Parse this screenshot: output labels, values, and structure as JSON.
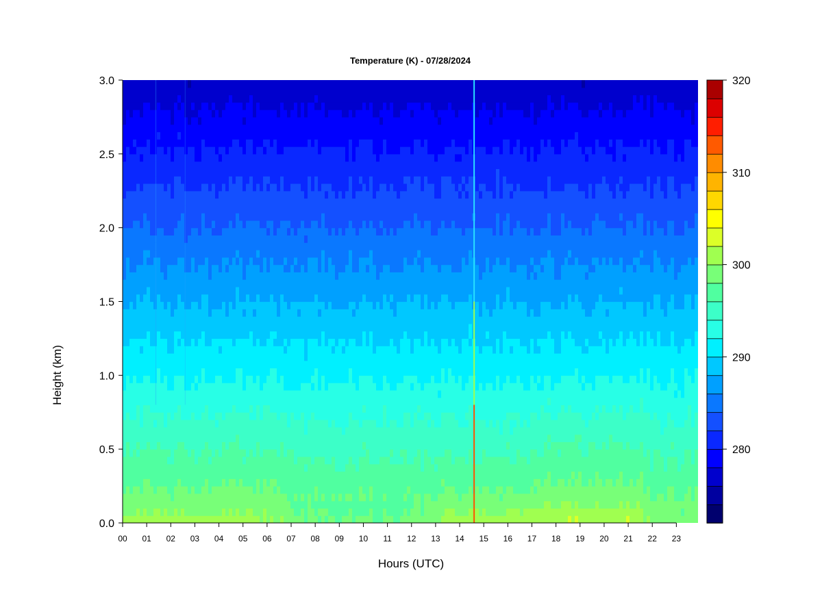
{
  "chart_data": {
    "type": "heatmap",
    "title": "Temperature (K) - 07/28/2024",
    "xlabel": "Hours (UTC)",
    "ylabel": "Height (km)",
    "x_ticks": [
      "00",
      "01",
      "02",
      "03",
      "04",
      "05",
      "06",
      "07",
      "08",
      "09",
      "10",
      "11",
      "12",
      "13",
      "14",
      "15",
      "16",
      "17",
      "18",
      "19",
      "20",
      "21",
      "22",
      "23"
    ],
    "xlim": [
      0,
      23.9
    ],
    "y_ticks": [
      "0.0",
      "0.5",
      "1.0",
      "1.5",
      "2.0",
      "2.5",
      "3.0"
    ],
    "ylim": [
      0,
      3.0
    ],
    "colorbar": {
      "ticks": [
        "280",
        "290",
        "300",
        "310",
        "320"
      ],
      "range": [
        272,
        320
      ],
      "levels": 24,
      "colors": [
        "#00006e",
        "#0000a0",
        "#0000cd",
        "#0000ff",
        "#0a28ff",
        "#1450ff",
        "#0a78ff",
        "#00a0ff",
        "#00c8ff",
        "#00f0ff",
        "#28ffe6",
        "#3cffc8",
        "#50ffa0",
        "#78ff78",
        "#a0ff50",
        "#dcff28",
        "#ffff00",
        "#ffd700",
        "#ffb400",
        "#ff8c00",
        "#ff5a00",
        "#ff1e00",
        "#dc0000",
        "#aa0000",
        "#780000"
      ]
    },
    "field_summary": {
      "surface_temperature_K": [
        299,
        300
      ],
      "top_temperature_K": 276,
      "warm_afternoon_window_hours": [
        13,
        21.5
      ],
      "spike_hour": 14.6
    }
  }
}
